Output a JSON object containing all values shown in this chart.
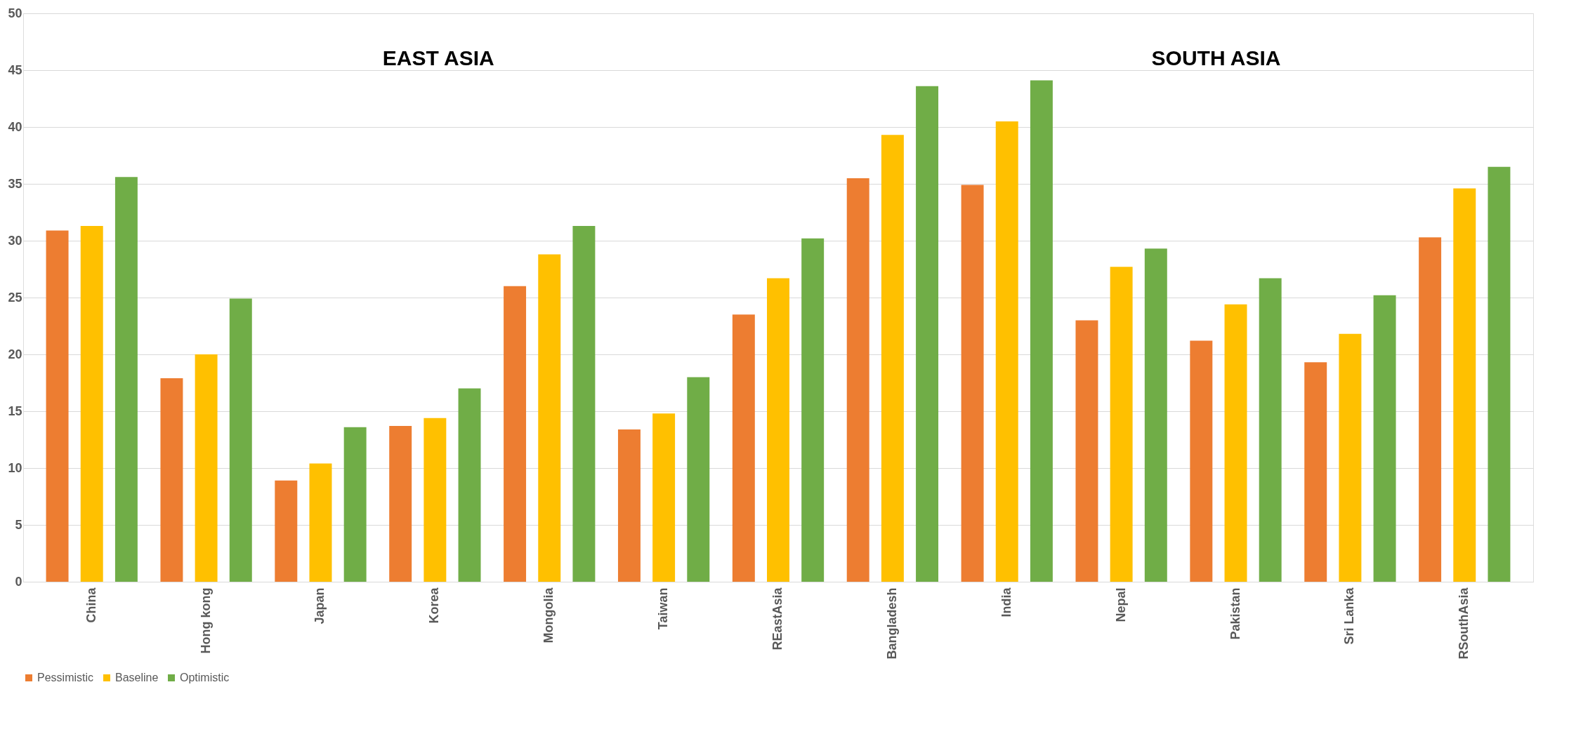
{
  "chart_data": {
    "type": "bar",
    "categories": [
      "China",
      "Hong kong",
      "Japan",
      "Korea",
      "Mongolia",
      "Taiwan",
      "REastAsia",
      "Bangladesh",
      "India",
      "Nepal",
      "Pakistan",
      "Sri Lanka",
      "RSouthAsia"
    ],
    "series": [
      {
        "name": "Pessimistic",
        "color": "#ed7d31",
        "values": [
          30.9,
          17.9,
          8.9,
          13.7,
          26.0,
          13.4,
          23.5,
          35.5,
          34.9,
          23.0,
          21.2,
          19.3,
          30.3
        ]
      },
      {
        "name": "Baseline",
        "color": "#ffc000",
        "values": [
          31.3,
          20.0,
          10.4,
          14.4,
          28.8,
          14.8,
          26.7,
          39.3,
          40.5,
          27.7,
          24.4,
          21.8,
          34.6
        ]
      },
      {
        "name": "Optimistic",
        "color": "#70ad47",
        "values": [
          35.6,
          24.9,
          13.6,
          17.0,
          31.3,
          18.0,
          30.2,
          43.6,
          44.1,
          29.3,
          26.7,
          25.2,
          36.5
        ]
      }
    ],
    "annotations": [
      "EAST ASIA",
      "SOUTH ASIA"
    ],
    "ylim": [
      0,
      50
    ],
    "yticks": [
      0,
      5,
      10,
      15,
      20,
      25,
      30,
      35,
      40,
      45,
      50
    ],
    "grid": "y",
    "legend": "bottom"
  }
}
